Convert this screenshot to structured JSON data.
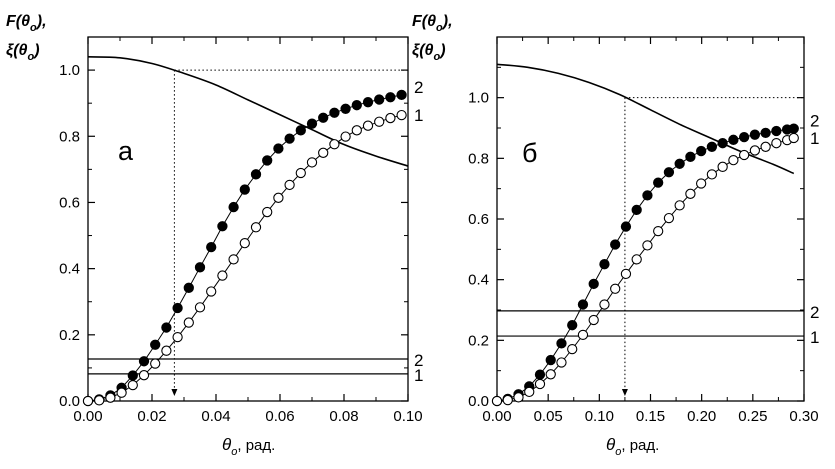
{
  "chart_data": [
    {
      "type": "line",
      "panel_label": "а",
      "ylabel_line1": "F(θ",
      "ylabel_line2": "ξ(θ",
      "ylabel_sub": "o",
      "ylabel_tail1": "),",
      "ylabel_tail2": ")",
      "xlabel_theta": "θ",
      "xlabel_sub": "o",
      "xlabel_unit": ", рад.",
      "xlim": [
        0.0,
        0.1
      ],
      "ylim": [
        0.0,
        1.1
      ],
      "xticks": [
        "0.00",
        "0.02",
        "0.04",
        "0.06",
        "0.08",
        "0.10"
      ],
      "xtick_values": [
        0.0,
        0.02,
        0.04,
        0.06,
        0.08,
        0.1
      ],
      "yticks": [
        "0.0",
        "0.2",
        "0.4",
        "0.6",
        "0.8",
        "1.0"
      ],
      "ytick_values": [
        0.0,
        0.2,
        0.4,
        0.6,
        0.8,
        1.0
      ],
      "reference_line_y": 1.0,
      "marker_x": 0.027,
      "series": [
        {
          "name": "F",
          "style": "line",
          "x": [
            0.0,
            0.01,
            0.02,
            0.03,
            0.04,
            0.05,
            0.06,
            0.07,
            0.08,
            0.09,
            0.1
          ],
          "y": [
            1.04,
            1.037,
            1.02,
            0.99,
            0.955,
            0.91,
            0.865,
            0.82,
            0.775,
            0.74,
            0.71
          ]
        },
        {
          "name": "2",
          "style": "filled-markers",
          "x": [
            0.0,
            0.0035,
            0.007,
            0.0105,
            0.014,
            0.0175,
            0.021,
            0.0245,
            0.028,
            0.0315,
            0.035,
            0.0385,
            0.042,
            0.0455,
            0.049,
            0.0525,
            0.056,
            0.0595,
            0.063,
            0.0665,
            0.07,
            0.0735,
            0.077,
            0.0805,
            0.084,
            0.0875,
            0.091,
            0.0945,
            0.098
          ],
          "y": [
            0.0,
            0.005,
            0.017,
            0.04,
            0.077,
            0.12,
            0.17,
            0.222,
            0.281,
            0.342,
            0.404,
            0.465,
            0.528,
            0.586,
            0.639,
            0.685,
            0.727,
            0.763,
            0.793,
            0.818,
            0.838,
            0.856,
            0.871,
            0.883,
            0.894,
            0.903,
            0.911,
            0.918,
            0.925
          ]
        },
        {
          "name": "1",
          "style": "open-markers",
          "x": [
            0.0,
            0.0035,
            0.007,
            0.0105,
            0.014,
            0.0175,
            0.021,
            0.0245,
            0.028,
            0.0315,
            0.035,
            0.0385,
            0.042,
            0.0455,
            0.049,
            0.0525,
            0.056,
            0.0595,
            0.063,
            0.0665,
            0.07,
            0.0735,
            0.077,
            0.0805,
            0.084,
            0.0875,
            0.091,
            0.0945,
            0.098
          ],
          "y": [
            0.0,
            0.002,
            0.01,
            0.025,
            0.048,
            0.078,
            0.113,
            0.152,
            0.193,
            0.237,
            0.283,
            0.331,
            0.379,
            0.428,
            0.477,
            0.525,
            0.571,
            0.614,
            0.653,
            0.689,
            0.721,
            0.75,
            0.776,
            0.799,
            0.818,
            0.832,
            0.844,
            0.855,
            0.864
          ]
        }
      ],
      "hlines": [
        {
          "label": "2",
          "y": 0.127
        },
        {
          "label": "1",
          "y": 0.082
        }
      ],
      "series_labels": [
        "2",
        "1"
      ]
    },
    {
      "type": "line",
      "panel_label": "б",
      "ylabel_line1": "F(θ",
      "ylabel_line2": "ξ(θ",
      "ylabel_sub": "o",
      "ylabel_tail1": "),",
      "ylabel_tail2": ")",
      "xlabel_theta": "θ",
      "xlabel_sub": "o",
      "xlabel_unit": ", рад.",
      "xlim": [
        0.0,
        0.3
      ],
      "ylim": [
        0.0,
        1.2
      ],
      "xticks": [
        "0.00",
        "0.05",
        "0.10",
        "0.15",
        "0.20",
        "0.25",
        "0.30"
      ],
      "xtick_values": [
        0.0,
        0.05,
        0.1,
        0.15,
        0.2,
        0.25,
        0.3
      ],
      "yticks": [
        "0.0",
        "0.2",
        "0.4",
        "0.6",
        "0.8",
        "1.0"
      ],
      "ytick_values": [
        0.0,
        0.2,
        0.4,
        0.6,
        0.8,
        1.0
      ],
      "reference_line_y": 1.0,
      "marker_x": 0.125,
      "series": [
        {
          "name": "F",
          "style": "line",
          "x": [
            0.0,
            0.03,
            0.06,
            0.09,
            0.12,
            0.15,
            0.18,
            0.21,
            0.24,
            0.27,
            0.29
          ],
          "y": [
            1.11,
            1.1,
            1.08,
            1.05,
            1.01,
            0.96,
            0.91,
            0.865,
            0.82,
            0.78,
            0.75
          ]
        },
        {
          "name": "2",
          "style": "filled-markers",
          "x": [
            0.0,
            0.0105,
            0.021,
            0.0315,
            0.042,
            0.0525,
            0.063,
            0.0735,
            0.084,
            0.0945,
            0.105,
            0.1155,
            0.126,
            0.1365,
            0.147,
            0.1575,
            0.168,
            0.1785,
            0.189,
            0.1995,
            0.21,
            0.2205,
            0.231,
            0.2415,
            0.252,
            0.2625,
            0.273,
            0.2835,
            0.29
          ],
          "y": [
            0.0,
            0.007,
            0.022,
            0.048,
            0.087,
            0.135,
            0.19,
            0.25,
            0.318,
            0.386,
            0.451,
            0.516,
            0.575,
            0.63,
            0.678,
            0.72,
            0.754,
            0.782,
            0.805,
            0.824,
            0.838,
            0.85,
            0.861,
            0.87,
            0.878,
            0.884,
            0.89,
            0.895,
            0.898
          ]
        },
        {
          "name": "1",
          "style": "open-markers",
          "x": [
            0.0,
            0.0105,
            0.021,
            0.0315,
            0.042,
            0.0525,
            0.063,
            0.0735,
            0.084,
            0.0945,
            0.105,
            0.1155,
            0.126,
            0.1365,
            0.147,
            0.1575,
            0.168,
            0.1785,
            0.189,
            0.1995,
            0.21,
            0.2205,
            0.231,
            0.2415,
            0.252,
            0.2625,
            0.273,
            0.2835,
            0.29
          ],
          "y": [
            0.0,
            0.003,
            0.012,
            0.03,
            0.056,
            0.088,
            0.127,
            0.171,
            0.218,
            0.267,
            0.318,
            0.37,
            0.419,
            0.467,
            0.513,
            0.56,
            0.603,
            0.645,
            0.683,
            0.717,
            0.747,
            0.772,
            0.794,
            0.811,
            0.826,
            0.838,
            0.85,
            0.86,
            0.867
          ]
        }
      ],
      "hlines": [
        {
          "label": "2",
          "y": 0.297
        },
        {
          "label": "1",
          "y": 0.214
        }
      ],
      "series_labels": [
        "2",
        "1"
      ]
    }
  ]
}
